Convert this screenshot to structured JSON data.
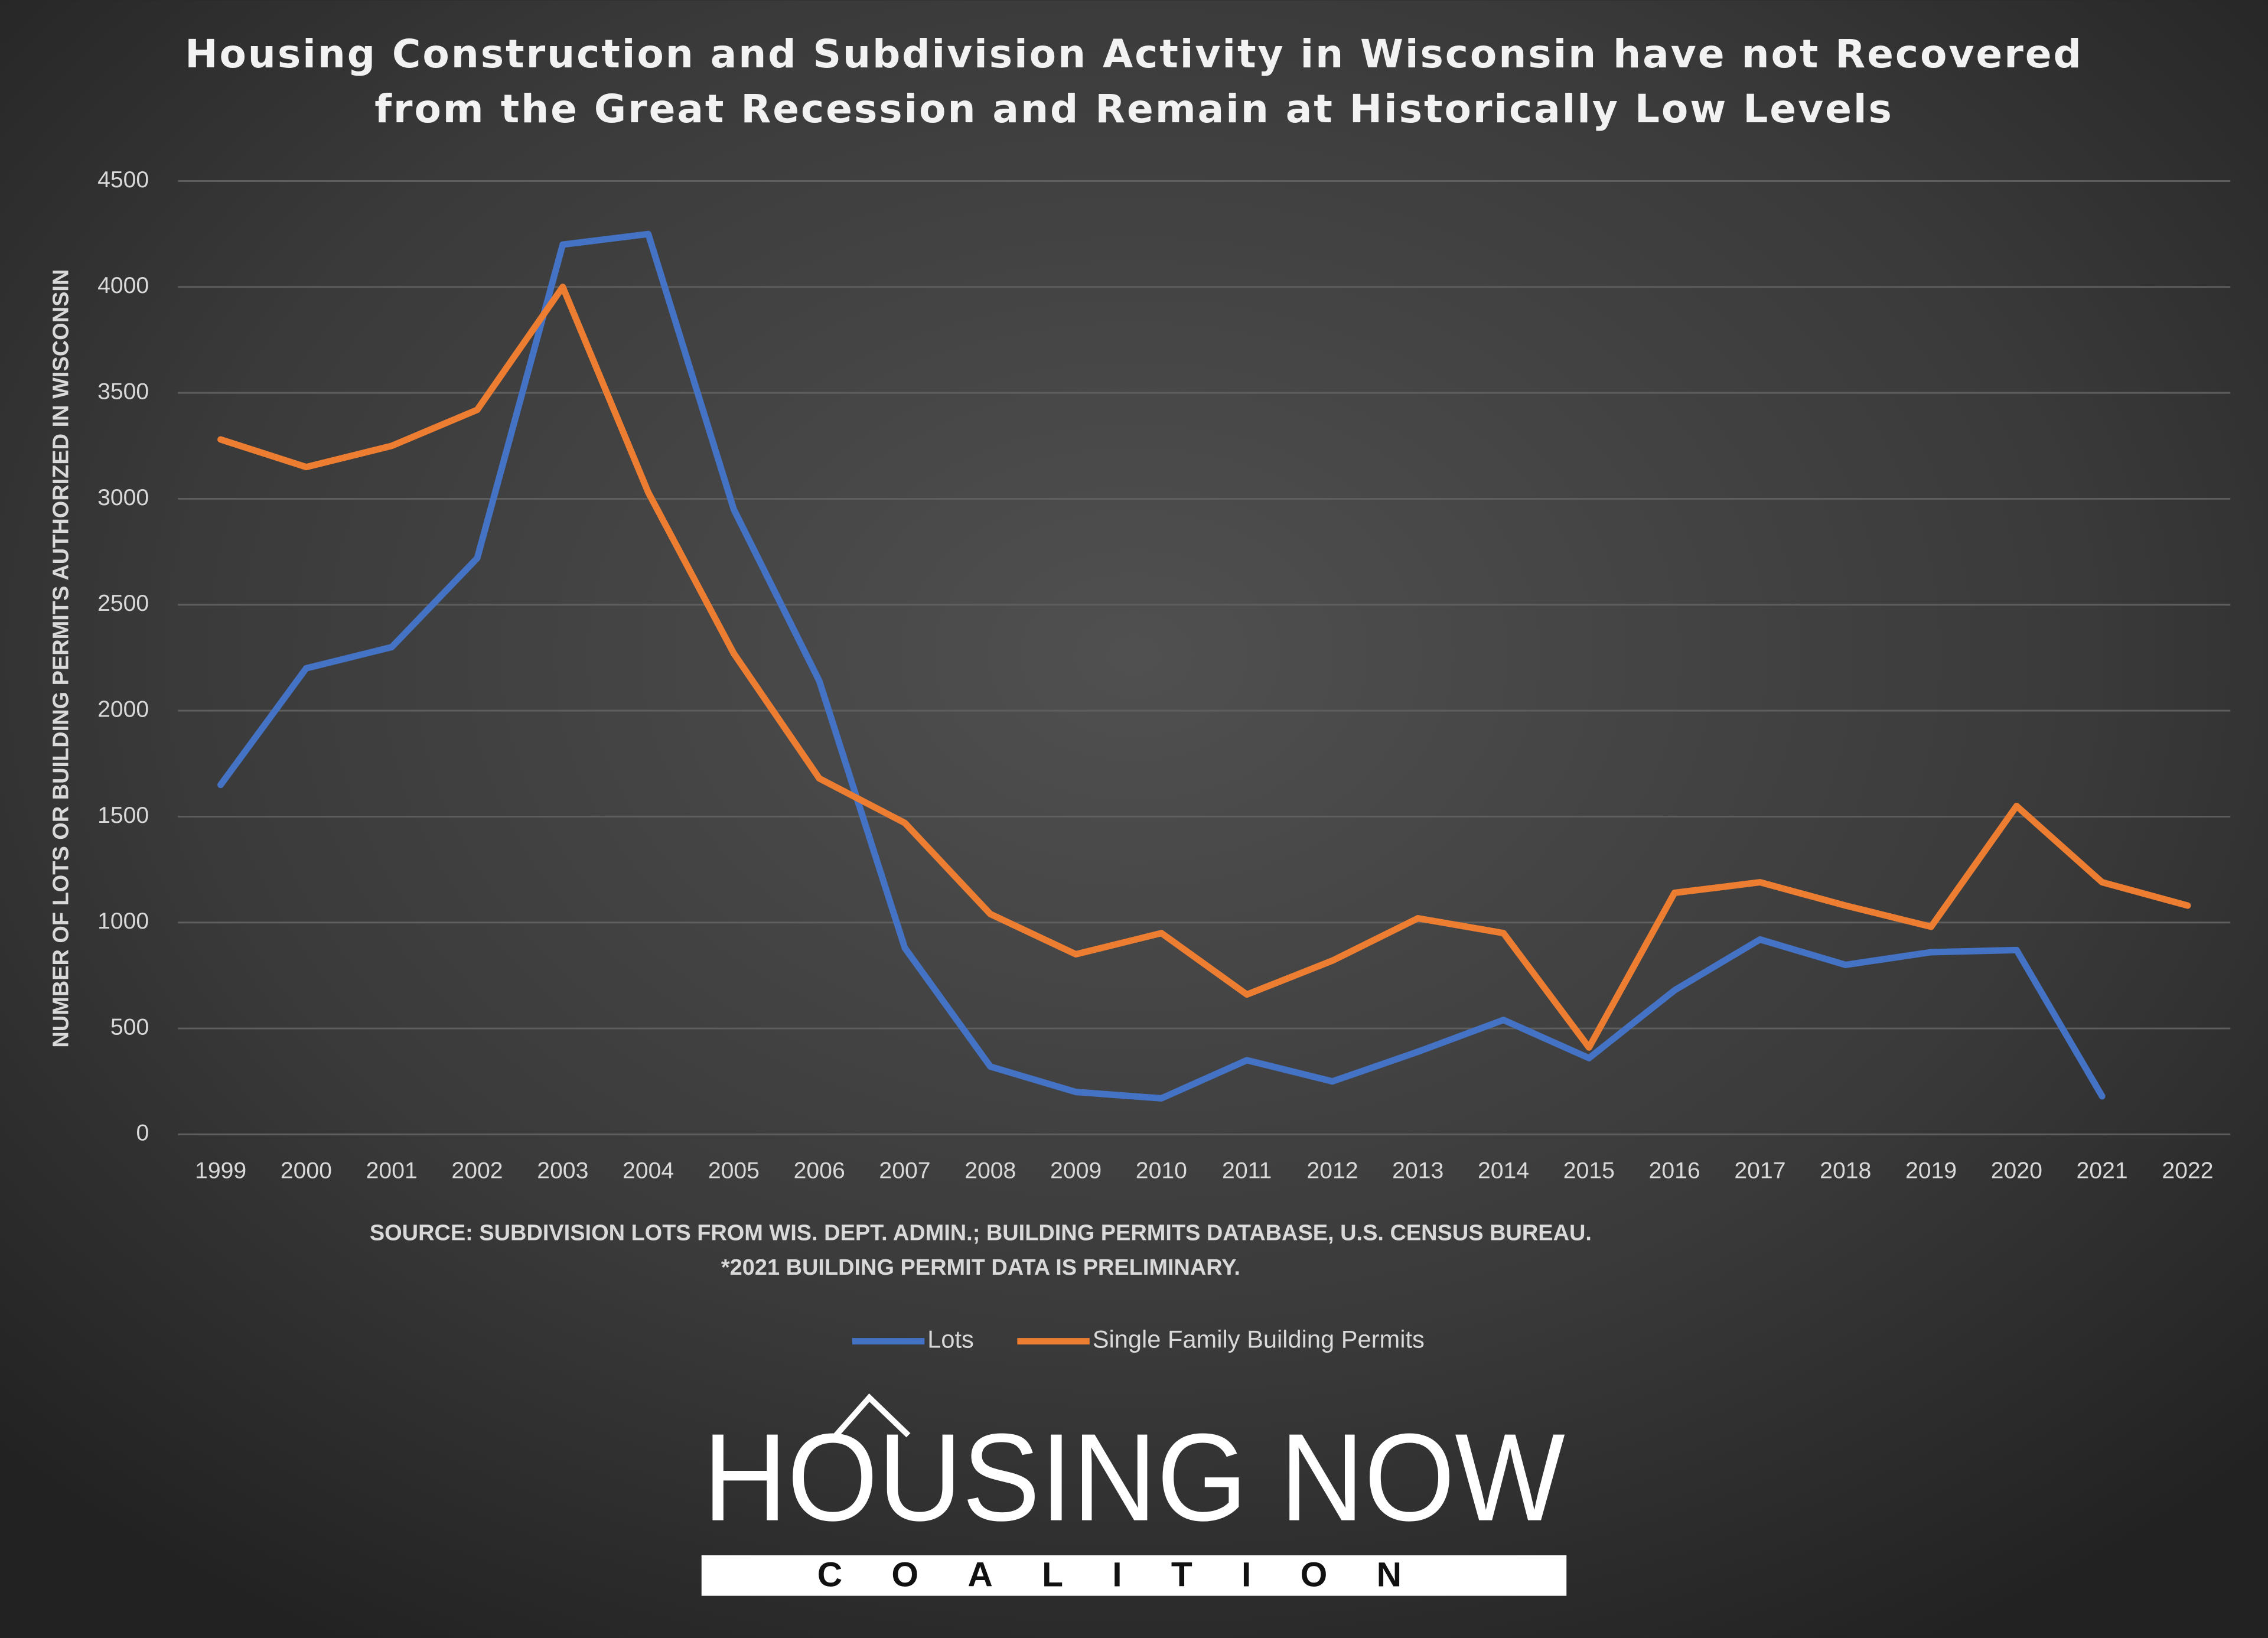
{
  "chart_data": {
    "type": "line",
    "title": [
      "Housing Construction and Subdivision Activity in Wisconsin have not Recovered",
      "from the Great Recession and Remain at Historically Low Levels"
    ],
    "y_label": "NUMBER OF LOTS OR BUILDING PERMITS AUTHORIZED IN WISCONSIN",
    "source": "SOURCE: SUBDIVISION LOTS FROM WIS. DEPT. ADMIN.; BUILDING PERMITS DATABASE, U.S. CENSUS BUREAU.",
    "note": "*2021 BUILDING PERMIT DATA IS PRELIMINARY.",
    "categories": [
      "1999",
      "2000",
      "2001",
      "2002",
      "2003",
      "2004",
      "2005",
      "2006",
      "2007",
      "2008",
      "2009",
      "2010",
      "2011",
      "2012",
      "2013",
      "2014",
      "2015",
      "2016",
      "2017",
      "2018",
      "2019",
      "2020",
      "2021",
      "2022"
    ],
    "series": [
      {
        "name": "Lots",
        "color": "#4472c4",
        "values": [
          1650,
          2200,
          2300,
          2720,
          4200,
          4250,
          2950,
          2140,
          880,
          320,
          200,
          170,
          350,
          250,
          390,
          540,
          360,
          680,
          920,
          800,
          860,
          870,
          180,
          null
        ]
      },
      {
        "name": "Single Family Building Permits",
        "color": "#ed7d31",
        "values": [
          3280,
          3150,
          3250,
          3420,
          4000,
          3030,
          2270,
          1680,
          1470,
          1040,
          850,
          950,
          660,
          820,
          1020,
          950,
          410,
          1140,
          1190,
          1080,
          980,
          1550,
          1190,
          1080
        ]
      }
    ],
    "ylim": [
      0,
      4500
    ],
    "yticks": [
      0,
      500,
      1000,
      1500,
      2000,
      2500,
      3000,
      3500,
      4000,
      4500
    ],
    "grid": true,
    "legend": "bottom"
  },
  "logo": {
    "name": "HOUSING NOW",
    "tagline": "COALITION"
  }
}
